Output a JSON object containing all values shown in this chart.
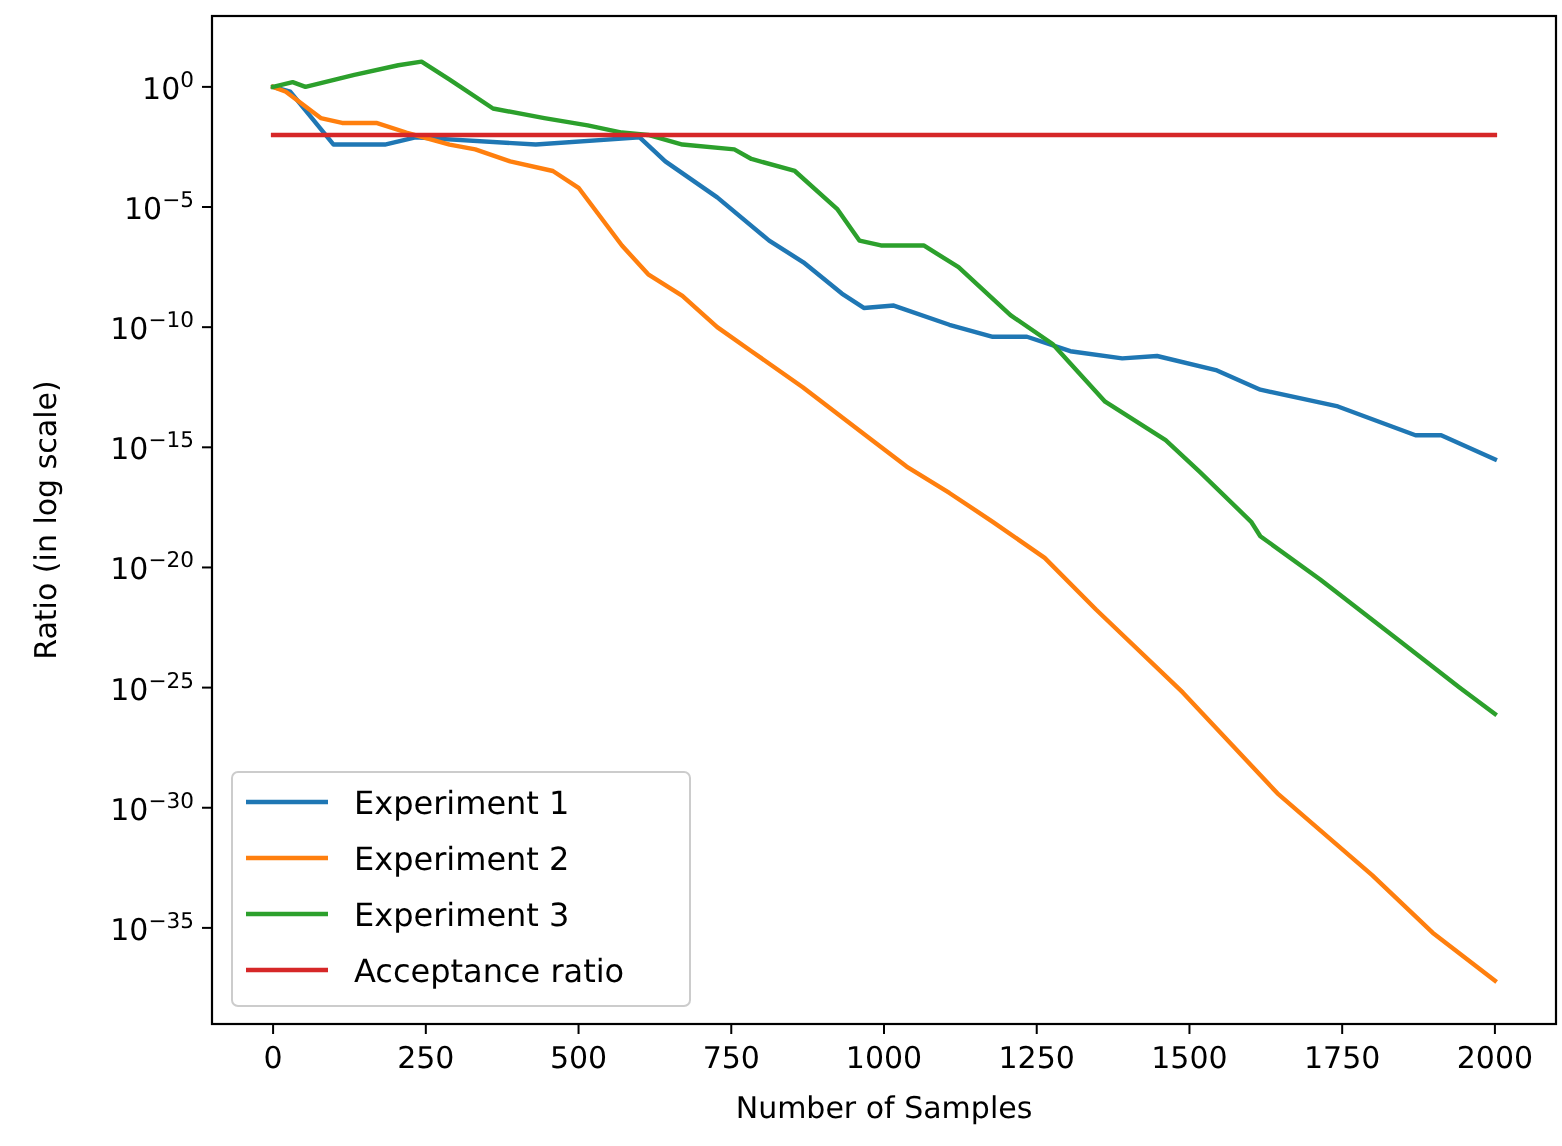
{
  "chart_data": {
    "type": "line",
    "xlabel": "Number of Samples",
    "ylabel": "Ratio (in log scale)",
    "log": "y",
    "grid": false,
    "legend": "bottom left",
    "line_style": "solid",
    "marker": "none",
    "xlim": [
      -100,
      2100
    ],
    "xticks": [
      0,
      250,
      500,
      750,
      1000,
      1250,
      1500,
      1750,
      2000
    ],
    "ylim": [
      1e-39,
      891
    ],
    "yticks": [
      {
        "value": 1,
        "label": "10$^{0}$"
      },
      {
        "value": 1e-05,
        "label": "10$^{−5}$"
      },
      {
        "value": 1e-10,
        "label": "10$^{−10}$"
      },
      {
        "value": 1e-15,
        "label": "10$^{−15}$"
      },
      {
        "value": 1e-20,
        "label": "10$^{−20}$"
      },
      {
        "value": 1e-25,
        "label": "10$^{−25}$"
      },
      {
        "value": 1e-30,
        "label": "10$^{−30}$"
      },
      {
        "value": 1e-35,
        "label": "10$^{−35}$"
      }
    ],
    "series": [
      {
        "name": "Experiment 1",
        "color": "#1f77b4",
        "x": [
          0,
          28,
          99,
          183,
          233,
          430,
          600,
          642,
          727,
          812,
          868,
          931,
          967,
          1016,
          1107,
          1178,
          1234,
          1305,
          1390,
          1447,
          1545,
          1616,
          1743,
          1870,
          1912,
          2000
        ],
        "values": [
          1,
          0.631,
          0.00398,
          0.00398,
          0.00794,
          0.00398,
          0.00794,
          0.000794,
          2.51e-05,
          3.98e-07,
          5.01e-08,
          2.51e-09,
          6.31e-10,
          7.94e-10,
          1.26e-10,
          3.98e-11,
          3.98e-11,
          1e-11,
          5.01e-12,
          6.31e-12,
          1.58e-12,
          2.51e-13,
          5.01e-14,
          3.16e-15,
          3.16e-15,
          3.16e-16
        ]
      },
      {
        "name": "Experiment 2",
        "color": "#ff7f0e",
        "x": [
          0,
          21,
          78,
          113,
          169,
          218,
          289,
          331,
          388,
          458,
          500,
          571,
          614,
          670,
          727,
          783,
          867,
          980,
          1037,
          1107,
          1178,
          1263,
          1347,
          1489,
          1644,
          1799,
          1898,
          2000
        ],
        "values": [
          1,
          0.631,
          0.0501,
          0.0316,
          0.0316,
          0.0126,
          0.00398,
          0.00251,
          0.000794,
          0.000316,
          6.31e-05,
          2.51e-07,
          1.58e-08,
          2e-09,
          1e-10,
          1e-11,
          3.16e-13,
          2e-15,
          1.58e-16,
          1.26e-17,
          7.94e-19,
          2.51e-20,
          1.78e-22,
          6.31e-26,
          3.98e-30,
          1.58e-33,
          6.31e-36,
          6.31e-38
        ]
      },
      {
        "name": "Experiment 3",
        "color": "#2ca02c",
        "x": [
          0,
          32,
          53,
          133,
          205,
          243,
          289,
          360,
          444,
          515,
          571,
          614,
          670,
          755,
          783,
          854,
          924,
          960,
          995,
          1065,
          1122,
          1207,
          1276,
          1362,
          1461,
          1516,
          1601,
          1616,
          1714,
          1841,
          1942,
          2000
        ],
        "values": [
          1,
          1.58,
          1,
          3.16,
          7.94,
          11.2,
          2.0,
          0.126,
          0.0501,
          0.0251,
          0.0126,
          0.01,
          0.00398,
          0.00251,
          0.001,
          0.000316,
          7.94e-06,
          3.98e-07,
          2.51e-07,
          2.51e-07,
          3.16e-08,
          3.16e-10,
          2e-11,
          7.94e-14,
          2e-15,
          1e-16,
          7.94e-19,
          2e-19,
          3.16e-21,
          1e-23,
          1e-25,
          7.94e-27
        ]
      },
      {
        "name": "Acceptance ratio",
        "color": "#d62728",
        "x": [
          0,
          2000
        ],
        "values": [
          0.01,
          0.01
        ]
      }
    ]
  }
}
